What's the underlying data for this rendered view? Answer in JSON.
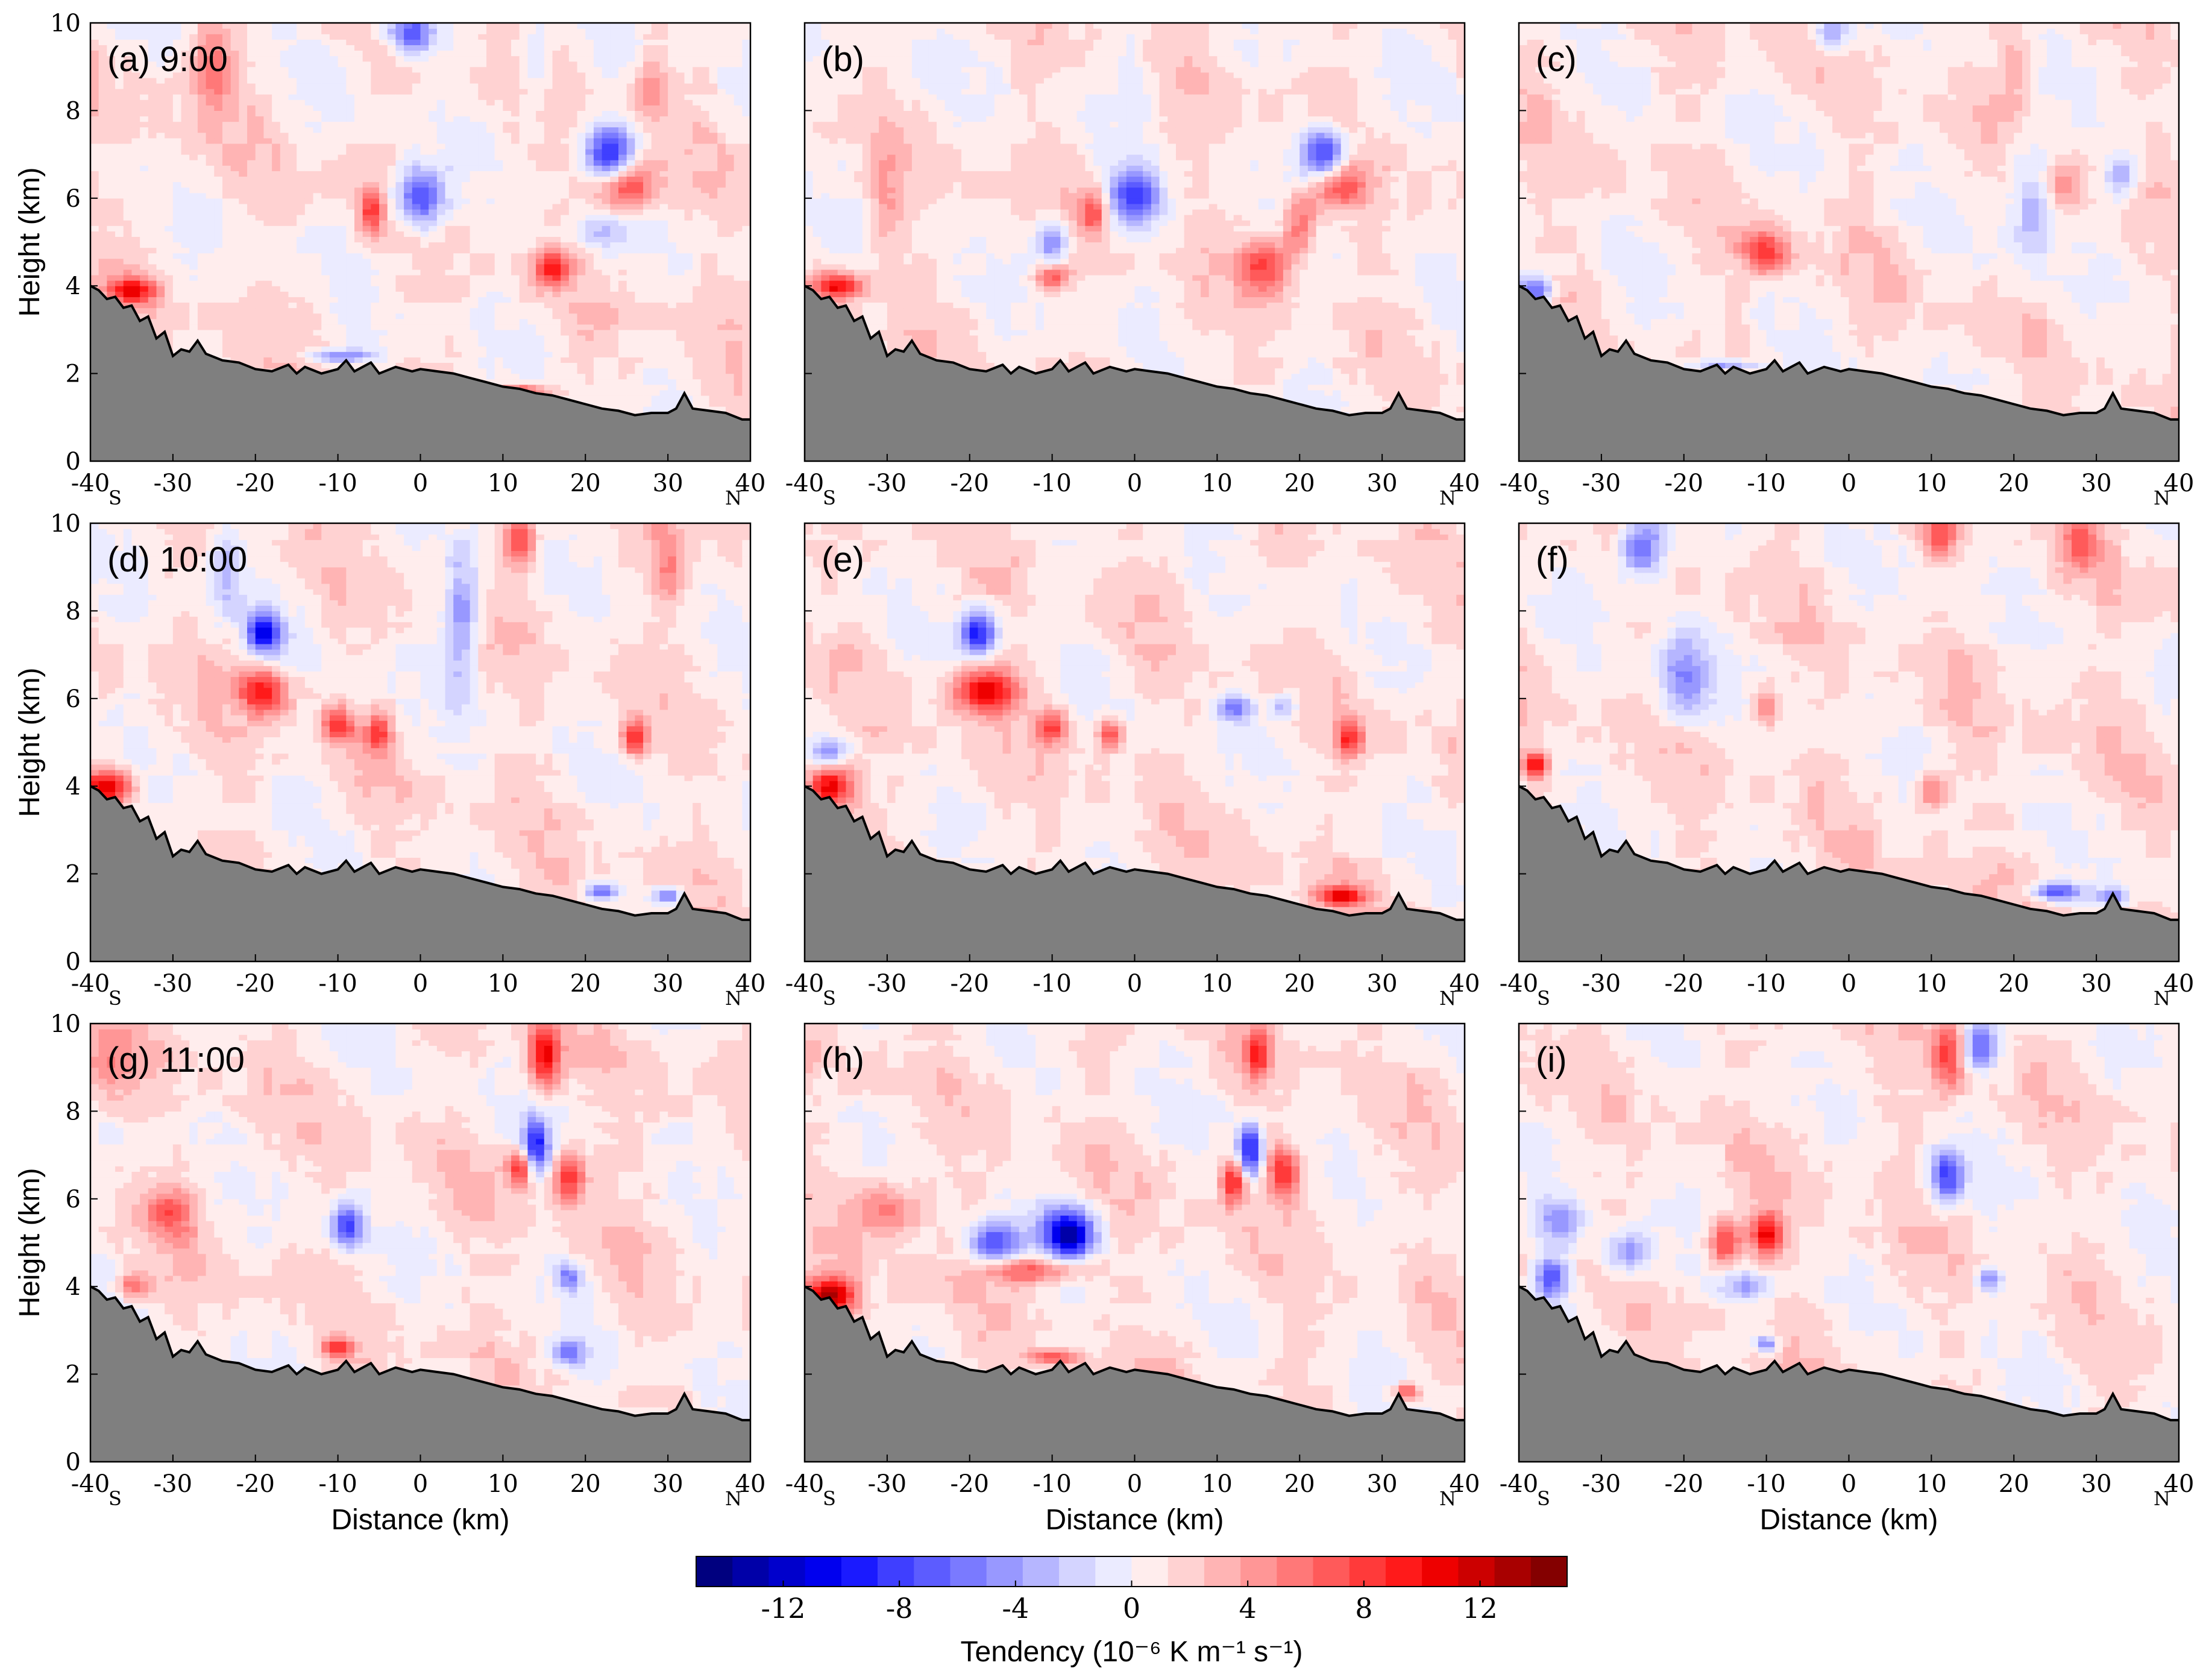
{
  "chart_data": {
    "type": "heatmap",
    "description_axes": "Vertical cross-sections of temperature tendency, 3x3 panels",
    "xlabel": "Distance (km)",
    "ylabel": "Height (km)",
    "xlim": [
      -40,
      40
    ],
    "ylim": [
      0,
      10
    ],
    "xticks": [
      "-40",
      "-30",
      "-20",
      "-10",
      "0",
      "10",
      "20",
      "30",
      "40"
    ],
    "yticks": [
      "0",
      "2",
      "4",
      "6",
      "8",
      "10"
    ],
    "south_label": "S",
    "north_label": "N",
    "panels": [
      {
        "label": "(a) 9:00",
        "row": 0,
        "col": 0,
        "blobs": [
          [
            0,
            6,
            3,
            0.7,
            -10
          ],
          [
            -1,
            9.8,
            3,
            0.5,
            -9
          ],
          [
            23,
            7,
            3,
            0.6,
            -11
          ],
          [
            25,
            6.3,
            4,
            0.6,
            8
          ],
          [
            -6,
            5.7,
            1.5,
            0.5,
            7
          ],
          [
            16,
            4.4,
            2,
            0.4,
            8
          ],
          [
            22,
            5.2,
            3,
            0.4,
            -4
          ],
          [
            14,
            9,
            2,
            1,
            -3
          ],
          [
            28,
            8.5,
            2,
            0.8,
            4
          ],
          [
            -25,
            9,
            3,
            1,
            4
          ],
          [
            -35,
            3.9,
            3,
            0.3,
            9
          ],
          [
            -10,
            2.4,
            4,
            0.15,
            -6
          ],
          [
            12,
            1.6,
            4,
            0.15,
            7
          ]
        ]
      },
      {
        "label": "(b)",
        "row": 0,
        "col": 1,
        "blobs": [
          [
            0,
            6,
            3,
            0.6,
            -9
          ],
          [
            -10,
            5,
            2,
            0.5,
            -7
          ],
          [
            -10,
            4.2,
            2,
            0.3,
            6
          ],
          [
            -5,
            5.7,
            1.5,
            0.5,
            6
          ],
          [
            23,
            7,
            3,
            0.6,
            -10
          ],
          [
            25,
            6.3,
            3,
            0.5,
            7
          ],
          [
            16,
            4.5,
            3,
            0.6,
            7
          ],
          [
            20,
            5.5,
            2,
            0.8,
            6
          ],
          [
            -36,
            4.0,
            3,
            0.3,
            10
          ],
          [
            -30,
            6,
            2,
            1,
            3
          ],
          [
            0,
            9,
            2,
            1,
            -2
          ]
        ]
      },
      {
        "label": "(c)",
        "row": 0,
        "col": 2,
        "blobs": [
          [
            -10,
            4.8,
            3,
            0.5,
            7
          ],
          [
            -2,
            9.8,
            2,
            0.4,
            -6
          ],
          [
            22,
            6,
            3,
            1.5,
            -4
          ],
          [
            33,
            6.5,
            2,
            0.5,
            -5
          ],
          [
            26,
            6.3,
            2,
            0.5,
            5
          ],
          [
            -38,
            3.9,
            2,
            0.3,
            -8
          ],
          [
            10,
            1.5,
            3,
            0.12,
            7
          ],
          [
            -15,
            2.2,
            4,
            0.12,
            -6
          ],
          [
            20,
            9,
            2,
            1,
            3
          ]
        ]
      },
      {
        "label": "(d) 10:00",
        "row": 1,
        "col": 0,
        "blobs": [
          [
            -19,
            7.5,
            2,
            0.5,
            -10
          ],
          [
            -19,
            6.2,
            3,
            0.5,
            9
          ],
          [
            -10,
            5.4,
            2,
            0.4,
            7
          ],
          [
            -5,
            5.2,
            1.5,
            0.4,
            7
          ],
          [
            12,
            9.6,
            2,
            0.6,
            8
          ],
          [
            5,
            8,
            2,
            1.5,
            -6
          ],
          [
            26,
            5.1,
            1.5,
            0.4,
            8
          ],
          [
            -38,
            4.0,
            3,
            0.4,
            10
          ],
          [
            22,
            1.6,
            2,
            0.2,
            -8
          ],
          [
            30,
            1.5,
            2,
            0.2,
            -7
          ],
          [
            -24,
            9,
            2,
            1,
            -4
          ],
          [
            30,
            9,
            2,
            1,
            4
          ]
        ]
      },
      {
        "label": "(e)",
        "row": 1,
        "col": 1,
        "blobs": [
          [
            -19,
            7.5,
            2,
            0.5,
            -10
          ],
          [
            -18,
            6.2,
            4,
            0.5,
            10
          ],
          [
            -10,
            5.4,
            2,
            0.4,
            7
          ],
          [
            -3,
            5.2,
            1.5,
            0.4,
            7
          ],
          [
            26,
            5.1,
            1.5,
            0.4,
            8
          ],
          [
            -37,
            4.0,
            3,
            0.5,
            10
          ],
          [
            -37,
            4.8,
            2,
            0.3,
            -6
          ],
          [
            25,
            1.5,
            3,
            0.2,
            9
          ],
          [
            12,
            5.8,
            2,
            0.3,
            -6
          ],
          [
            18,
            5.8,
            2,
            0.3,
            -5
          ]
        ]
      },
      {
        "label": "(f)",
        "row": 1,
        "col": 2,
        "blobs": [
          [
            -25,
            9.5,
            3,
            0.8,
            -8
          ],
          [
            -20,
            6.5,
            3,
            1,
            -6
          ],
          [
            -38,
            4.5,
            1.5,
            0.3,
            9
          ],
          [
            11,
            9.8,
            2,
            0.5,
            6
          ],
          [
            28,
            9.5,
            2,
            0.6,
            5
          ],
          [
            25,
            1.6,
            3,
            0.2,
            -8
          ],
          [
            32,
            1.5,
            2,
            0.2,
            -7
          ],
          [
            -10,
            5.8,
            1.5,
            0.4,
            5
          ],
          [
            10,
            3.9,
            2,
            0.4,
            5
          ]
        ]
      },
      {
        "label": "(g) 11:00",
        "row": 2,
        "col": 0,
        "blobs": [
          [
            15,
            9.3,
            2,
            0.8,
            10
          ],
          [
            14,
            7.2,
            1.5,
            0.6,
            -10
          ],
          [
            18,
            6.5,
            2,
            0.6,
            8
          ],
          [
            12,
            6.7,
            1.5,
            0.4,
            8
          ],
          [
            -9,
            5.4,
            2,
            0.5,
            -9
          ],
          [
            -30,
            5.7,
            3,
            0.6,
            5
          ],
          [
            -38,
            9,
            3,
            0.8,
            4
          ],
          [
            18,
            2.5,
            2,
            0.3,
            -6
          ],
          [
            18,
            4.2,
            1.5,
            0.3,
            -6
          ],
          [
            -10,
            2.6,
            2,
            0.2,
            7
          ],
          [
            -35,
            4.0,
            2,
            0.3,
            5
          ]
        ]
      },
      {
        "label": "(h)",
        "row": 2,
        "col": 1,
        "blobs": [
          [
            -8,
            5.2,
            3,
            0.55,
            -13
          ],
          [
            -17,
            5.0,
            3,
            0.5,
            -9
          ],
          [
            -12,
            4.4,
            6,
            0.3,
            7
          ],
          [
            -30,
            5.8,
            4,
            0.7,
            5
          ],
          [
            -37,
            3.8,
            3,
            0.4,
            12
          ],
          [
            14,
            7.1,
            1.5,
            0.6,
            -11
          ],
          [
            12,
            6.4,
            1.5,
            0.5,
            9
          ],
          [
            18,
            6.6,
            2,
            0.6,
            8
          ],
          [
            15,
            9.3,
            1.5,
            0.6,
            7
          ],
          [
            -10,
            2.4,
            3,
            0.15,
            7
          ],
          [
            33,
            1.6,
            1.5,
            0.2,
            7
          ]
        ]
      },
      {
        "label": "(i)",
        "row": 2,
        "col": 2,
        "blobs": [
          [
            -10,
            5.2,
            2,
            0.5,
            10
          ],
          [
            -15,
            5.0,
            2,
            0.5,
            8
          ],
          [
            12,
            6.5,
            2,
            0.6,
            -9
          ],
          [
            12,
            9.3,
            2,
            0.8,
            7
          ],
          [
            16,
            9.5,
            2,
            0.6,
            -7
          ],
          [
            -27,
            4.8,
            3,
            0.5,
            -6
          ],
          [
            -36,
            4.2,
            2,
            0.5,
            -8
          ],
          [
            -12,
            4.0,
            3,
            0.3,
            -5
          ],
          [
            -10,
            2.7,
            1.5,
            0.2,
            -7
          ],
          [
            17,
            4.2,
            1.5,
            0.3,
            -6
          ],
          [
            -35,
            5.5,
            3,
            0.5,
            -5
          ]
        ]
      }
    ],
    "terrain_km": [
      [
        -40,
        4.0
      ],
      [
        -39,
        3.9
      ],
      [
        -38,
        3.7
      ],
      [
        -37,
        3.75
      ],
      [
        -36,
        3.5
      ],
      [
        -35,
        3.55
      ],
      [
        -34,
        3.2
      ],
      [
        -33,
        3.3
      ],
      [
        -32,
        2.8
      ],
      [
        -31,
        2.95
      ],
      [
        -30,
        2.4
      ],
      [
        -29,
        2.55
      ],
      [
        -28,
        2.5
      ],
      [
        -27,
        2.75
      ],
      [
        -26,
        2.45
      ],
      [
        -24,
        2.3
      ],
      [
        -22,
        2.25
      ],
      [
        -20,
        2.1
      ],
      [
        -18,
        2.05
      ],
      [
        -16,
        2.2
      ],
      [
        -15,
        2.0
      ],
      [
        -14,
        2.15
      ],
      [
        -12,
        2.0
      ],
      [
        -10,
        2.1
      ],
      [
        -9,
        2.3
      ],
      [
        -8,
        2.05
      ],
      [
        -6,
        2.25
      ],
      [
        -5,
        2.0
      ],
      [
        -3,
        2.15
      ],
      [
        -1,
        2.05
      ],
      [
        0,
        2.1
      ],
      [
        2,
        2.05
      ],
      [
        4,
        2.0
      ],
      [
        6,
        1.9
      ],
      [
        8,
        1.8
      ],
      [
        10,
        1.7
      ],
      [
        12,
        1.65
      ],
      [
        14,
        1.55
      ],
      [
        16,
        1.5
      ],
      [
        18,
        1.4
      ],
      [
        20,
        1.3
      ],
      [
        22,
        1.2
      ],
      [
        24,
        1.15
      ],
      [
        26,
        1.05
      ],
      [
        28,
        1.1
      ],
      [
        30,
        1.1
      ],
      [
        31,
        1.2
      ],
      [
        32,
        1.55
      ],
      [
        33,
        1.2
      ],
      [
        35,
        1.15
      ],
      [
        37,
        1.1
      ],
      [
        39,
        0.95
      ],
      [
        40,
        0.95
      ]
    ],
    "colorbar": {
      "label": "Tendency (10⁻⁶ K m⁻¹ s⁻¹)",
      "range": [
        -15,
        15
      ],
      "ticks": [
        "-12",
        "-8",
        "-4",
        "0",
        "4",
        "8",
        "12"
      ],
      "colors": [
        "#00007f",
        "#0000a8",
        "#0000cc",
        "#0000ee",
        "#1a1aff",
        "#3f3fff",
        "#5c5cff",
        "#7a7aff",
        "#9898ff",
        "#b6b6ff",
        "#d4d4ff",
        "#ebebff",
        "#ffeded",
        "#ffd2d2",
        "#ffb4b4",
        "#ff9696",
        "#ff7878",
        "#ff5a5a",
        "#ff3a3a",
        "#ff1a1a",
        "#ee0000",
        "#cc0000",
        "#a80000",
        "#840000"
      ]
    }
  }
}
